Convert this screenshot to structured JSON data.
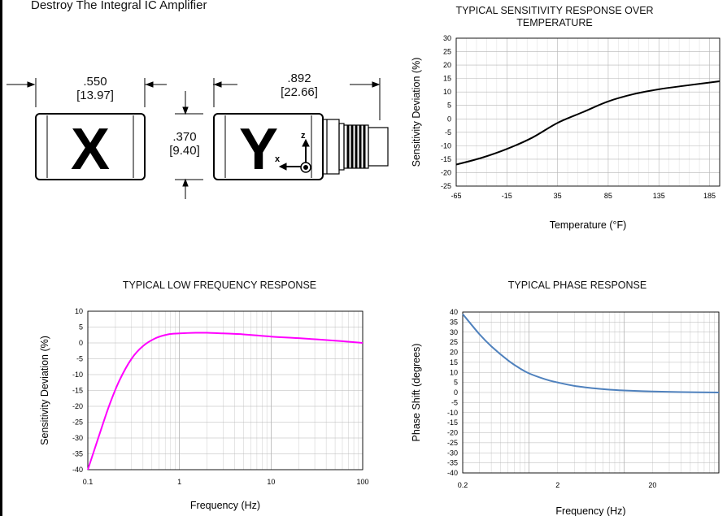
{
  "page": {
    "caption": "Destroy The Integral IC Amplifier"
  },
  "drawing": {
    "dim_x_top": ".550",
    "dim_x_bottom": "[13.97]",
    "dim_y_top": ".892",
    "dim_y_bottom": "[22.66]",
    "dim_h_top": ".370",
    "dim_h_bottom": "[9.40]",
    "sensor_x_label": "X",
    "sensor_y_label": "Y",
    "axis_z_label": "z",
    "axis_x_label": "x"
  },
  "chart_data": [
    {
      "type": "line",
      "title": "TYPICAL SENSITIVITY RESPONSE OVER TEMPERATURE",
      "title_lines": [
        "TYPICAL SENSITIVITY RESPONSE OVER",
        "TEMPERATURE"
      ],
      "xlabel": "Temperature (°F)",
      "ylabel": "Sensitivity Deviation (%)",
      "xscale": "linear",
      "xlim": [
        -65,
        195
      ],
      "ylim": [
        -25,
        30
      ],
      "xticks": [
        -65,
        -15,
        35,
        85,
        135,
        185
      ],
      "yticks": [
        -25,
        -20,
        -15,
        -10,
        -5,
        0,
        5,
        10,
        15,
        20,
        25,
        30
      ],
      "grid": true,
      "series": [
        {
          "color": "#000000",
          "x": [
            -65,
            -40,
            -15,
            10,
            35,
            60,
            85,
            110,
            135,
            160,
            195
          ],
          "y": [
            -17,
            -14.5,
            -11.2,
            -7,
            -1.5,
            2.5,
            6.5,
            9.2,
            11,
            12.3,
            14
          ]
        }
      ]
    },
    {
      "type": "line",
      "title": "TYPICAL LOW FREQUENCY RESPONSE",
      "title_lines": [
        "TYPICAL LOW FREQUENCY RESPONSE"
      ],
      "xlabel": "Frequency (Hz)",
      "ylabel": "Sensitivity Deviation (%)",
      "xscale": "log",
      "xlim": [
        0.1,
        100
      ],
      "ylim": [
        -40,
        10
      ],
      "xticks": [
        0.1,
        1,
        10,
        100
      ],
      "yticks": [
        -40,
        -35,
        -30,
        -25,
        -20,
        -15,
        -10,
        -5,
        0,
        5,
        10
      ],
      "grid": true,
      "series": [
        {
          "color": "#ff00ff",
          "x": [
            0.1,
            0.13,
            0.17,
            0.22,
            0.3,
            0.4,
            0.55,
            0.75,
            1,
            1.5,
            2,
            3,
            5,
            10,
            20,
            50,
            100
          ],
          "y": [
            -40,
            -30,
            -20,
            -12,
            -5,
            -1,
            1.5,
            2.7,
            3,
            3.2,
            3.2,
            3,
            2.7,
            2,
            1.5,
            0.7,
            0
          ]
        }
      ]
    },
    {
      "type": "line",
      "title": "TYPICAL PHASE RESPONSE",
      "title_lines": [
        "TYPICAL PHASE RESPONSE"
      ],
      "xlabel": "Frequency (Hz)",
      "ylabel": "Phase Shift (degrees)",
      "xscale": "log",
      "xlim": [
        0.2,
        100
      ],
      "ylim": [
        -40,
        40
      ],
      "xticks": [
        0.2,
        2,
        20
      ],
      "yticks": [
        -40,
        -35,
        -30,
        -25,
        -20,
        -15,
        -10,
        -5,
        0,
        5,
        10,
        15,
        20,
        25,
        30,
        35,
        40
      ],
      "grid": true,
      "series": [
        {
          "color": "#4f81bd",
          "x": [
            0.2,
            0.3,
            0.4,
            0.6,
            0.8,
            1,
            1.5,
            2,
            3,
            5,
            7,
            10,
            20,
            40,
            100
          ],
          "y": [
            39,
            29,
            23,
            16,
            12,
            9.5,
            6.5,
            5,
            3.3,
            2,
            1.4,
            1,
            0.5,
            0.2,
            0
          ]
        }
      ]
    }
  ]
}
